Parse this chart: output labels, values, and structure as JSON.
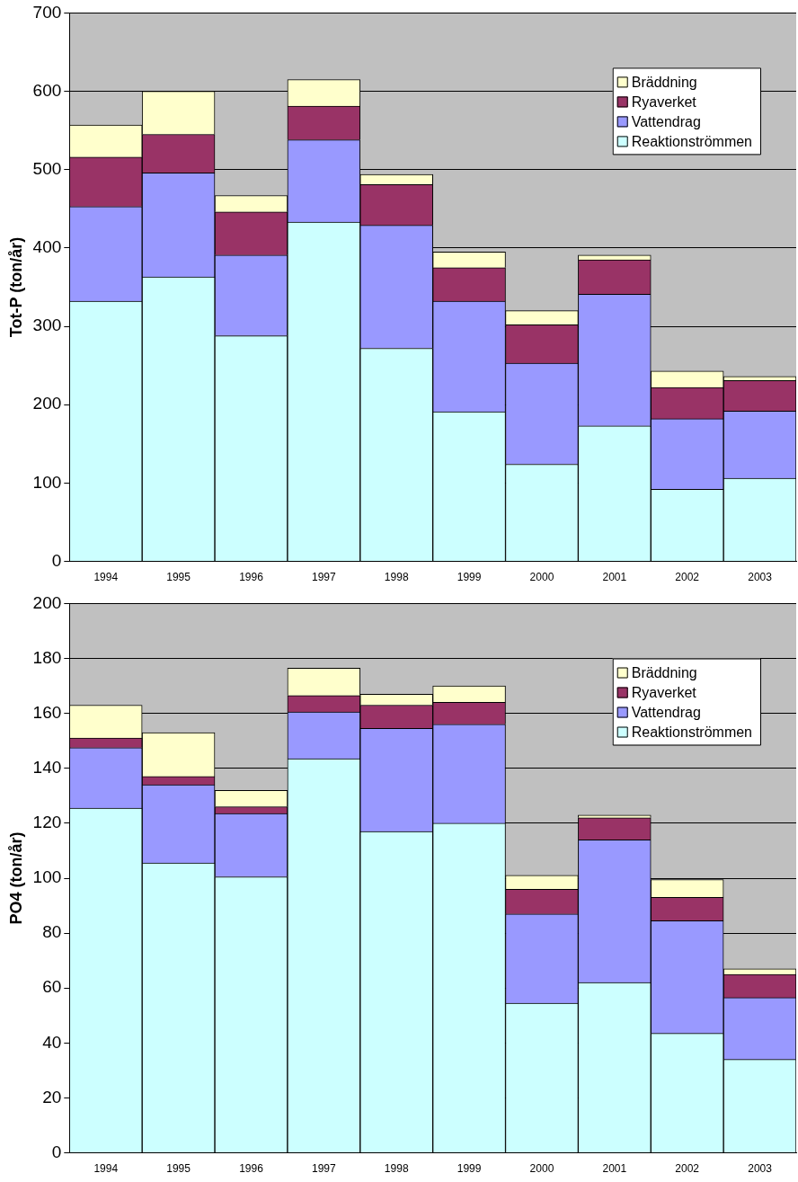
{
  "chart_data": [
    {
      "type": "bar",
      "ylabel": "Tot-P (ton/år)",
      "categories": [
        "1994",
        "1995",
        "1996",
        "1997",
        "1998",
        "1999",
        "2000",
        "2001",
        "2002",
        "2003"
      ],
      "stacked": true,
      "ylim": [
        0,
        700
      ],
      "yticks": [
        0,
        100,
        200,
        300,
        400,
        500,
        600,
        700
      ],
      "grid": "y",
      "legend": "top right",
      "series": [
        {
          "name": "Reaktionströmmen",
          "color": "#ccffff",
          "values": [
            332,
            363,
            288,
            433,
            272,
            191,
            124,
            173,
            92,
            106
          ]
        },
        {
          "name": "Vattendrag",
          "color": "#9999ff",
          "values": [
            121,
            133,
            103,
            105,
            157,
            141,
            129,
            168,
            90,
            86
          ]
        },
        {
          "name": "Ryaverket",
          "color": "#993366",
          "values": [
            63,
            49,
            55,
            43,
            52,
            43,
            49,
            44,
            40,
            39
          ]
        },
        {
          "name": "Bräddning",
          "color": "#ffffcc",
          "values": [
            41,
            55,
            21,
            34,
            13,
            20,
            18,
            6,
            21,
            5
          ]
        }
      ]
    },
    {
      "type": "bar",
      "ylabel": "PO4 (ton/år)",
      "categories": [
        "1994",
        "1995",
        "1996",
        "1997",
        "1998",
        "1999",
        "2000",
        "2001",
        "2002",
        "2003"
      ],
      "stacked": true,
      "ylim": [
        0,
        200
      ],
      "yticks": [
        0,
        20,
        40,
        60,
        80,
        100,
        120,
        140,
        160,
        180,
        200
      ],
      "grid": "y",
      "legend": "top right",
      "series": [
        {
          "name": "Reaktionströmmen",
          "color": "#ccffff",
          "values": [
            125.5,
            105.5,
            100.5,
            143.5,
            117,
            120,
            54.5,
            62,
            43.5,
            34
          ]
        },
        {
          "name": "Vattendrag",
          "color": "#9999ff",
          "values": [
            22,
            28.5,
            23,
            17,
            37.5,
            36,
            32.5,
            52,
            41,
            22.5
          ]
        },
        {
          "name": "Ryaverket",
          "color": "#993366",
          "values": [
            3.5,
            3,
            2.5,
            6,
            8.5,
            8,
            9,
            8,
            8.5,
            8.5
          ]
        },
        {
          "name": "Bräddning",
          "color": "#ffffcc",
          "values": [
            12,
            16,
            6,
            10,
            4,
            6,
            5,
            1,
            6.5,
            2
          ]
        }
      ]
    }
  ]
}
